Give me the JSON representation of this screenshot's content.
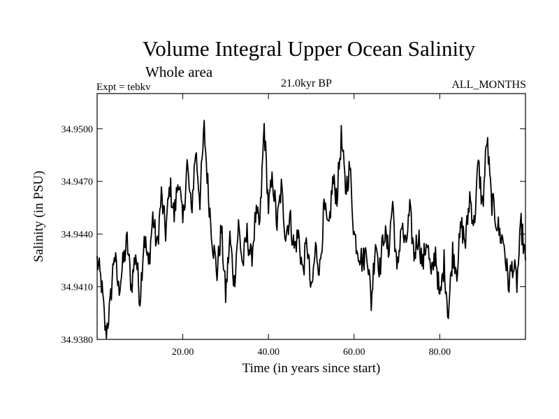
{
  "chart_data": {
    "type": "line",
    "title": "Volume Integral Upper Ocean Salinity",
    "subtitle": "Whole area",
    "experiment": "Expt = tebkv",
    "period": "21.0kyr BP",
    "months": "ALL_MONTHS",
    "xlabel": "Time (in years since start)",
    "ylabel": "Salinity (in PSU)",
    "xlim": [
      0.0,
      100.0
    ],
    "ylim": [
      34.938,
      34.952
    ],
    "xticks": [
      20,
      40,
      60,
      80
    ],
    "xtick_labels": [
      "20.00",
      "40.00",
      "60.00",
      "80.00"
    ],
    "yticks": [
      34.938,
      34.941,
      34.944,
      34.947,
      34.95
    ],
    "ytick_labels": [
      "34.9380",
      "34.9410",
      "34.9440",
      "34.9470",
      "34.9500"
    ],
    "grid": false,
    "series": [
      {
        "name": "Salinity",
        "color": "#000000",
        "x": [
          0.0,
          1.0,
          2.0,
          3.0,
          4.0,
          5.0,
          6.0,
          7.0,
          8.0,
          9.0,
          10.0,
          11.0,
          12.0,
          13.0,
          14.0,
          15.0,
          16.0,
          17.0,
          18.0,
          19.0,
          20.0,
          21.0,
          22.0,
          23.0,
          24.0,
          25.0,
          26.0,
          27.0,
          28.0,
          29.0,
          30.0,
          31.0,
          32.0,
          33.0,
          34.0,
          35.0,
          36.0,
          37.0,
          38.0,
          39.0,
          40.0,
          41.0,
          42.0,
          43.0,
          44.0,
          45.0,
          46.0,
          47.0,
          48.0,
          49.0,
          50.0,
          51.0,
          52.0,
          53.0,
          54.0,
          55.0,
          56.0,
          57.0,
          58.0,
          59.0,
          60.0,
          61.0,
          62.0,
          63.0,
          64.0,
          65.0,
          66.0,
          67.0,
          68.0,
          69.0,
          70.0,
          71.0,
          72.0,
          73.0,
          74.0,
          75.0,
          76.0,
          77.0,
          78.0,
          79.0,
          80.0,
          81.0,
          82.0,
          83.0,
          84.0,
          85.0,
          86.0,
          87.0,
          88.0,
          89.0,
          90.0,
          91.0,
          92.0,
          93.0,
          94.0,
          95.0,
          96.0,
          97.0,
          98.0,
          99.0,
          100.0
        ],
        "values": [
          34.9425,
          34.9412,
          34.9383,
          34.9398,
          34.943,
          34.9408,
          34.9422,
          34.9436,
          34.941,
          34.943,
          34.9403,
          34.944,
          34.9421,
          34.945,
          34.9432,
          34.9462,
          34.9441,
          34.9468,
          34.945,
          34.9473,
          34.9445,
          34.948,
          34.9452,
          34.9488,
          34.946,
          34.95,
          34.9462,
          34.9435,
          34.9418,
          34.9443,
          34.9405,
          34.9438,
          34.9412,
          34.9445,
          34.9422,
          34.944,
          34.9425,
          34.945,
          34.9445,
          34.9502,
          34.9455,
          34.9472,
          34.9445,
          34.9466,
          34.944,
          34.945,
          34.9432,
          34.944,
          34.9418,
          34.9436,
          34.9405,
          34.9432,
          34.942,
          34.9455,
          34.944,
          34.947,
          34.9462,
          34.9495,
          34.9465,
          34.9478,
          34.944,
          34.9431,
          34.9424,
          34.9432,
          34.9401,
          34.9437,
          34.942,
          34.9442,
          34.943,
          34.9459,
          34.9416,
          34.9446,
          34.9432,
          34.9453,
          34.9428,
          34.944,
          34.9422,
          34.9438,
          34.9414,
          34.9431,
          34.9401,
          34.9424,
          34.9394,
          34.943,
          34.942,
          34.9445,
          34.9435,
          34.9462,
          34.9445,
          34.948,
          34.9455,
          34.9495,
          34.946,
          34.945,
          34.944,
          34.9435,
          34.9411,
          34.9423,
          34.9412,
          34.9445,
          34.9425
        ]
      }
    ]
  }
}
